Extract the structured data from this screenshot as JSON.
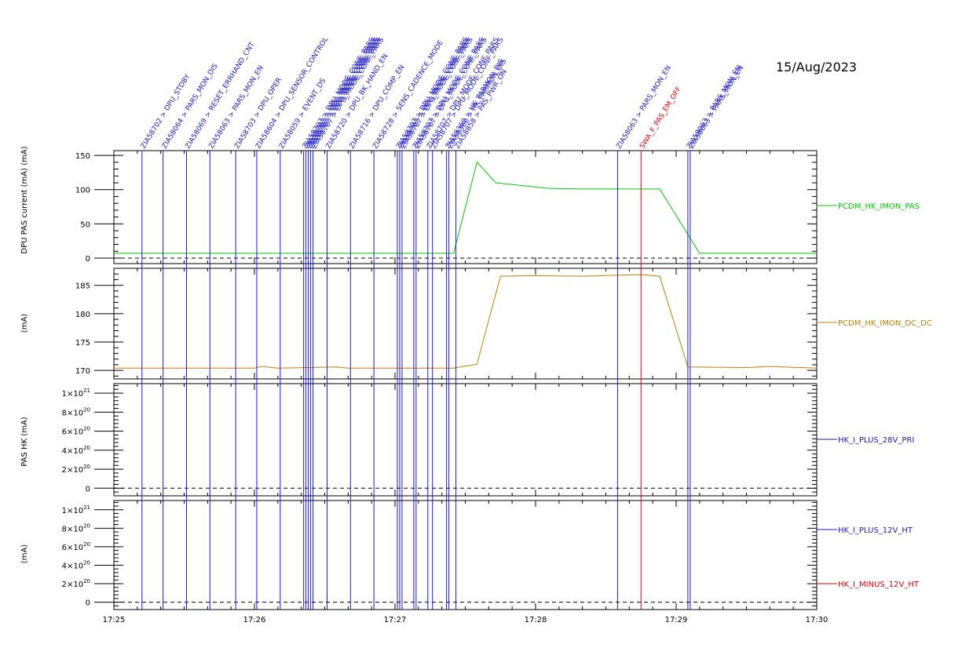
{
  "date": "15/Aug/2023",
  "x_ticks": [
    "17:25",
    "17:26",
    "17:27",
    "17:28",
    "17:29",
    "17:30"
  ],
  "chart_data": [
    {
      "type": "line",
      "panel": "pas-current",
      "ylabel": "DPU PAS current (mA)  (mA)",
      "ylim": [
        -8,
        157
      ],
      "yticks": [
        "0",
        "50",
        "100",
        "150"
      ],
      "ytick_values": [
        0,
        50,
        100,
        150
      ],
      "dashed_zero": true,
      "series": [
        {
          "name": "PCDM_HK_IMON_PAS",
          "color": "#00cc00",
          "x": [
            "17:25:00",
            "17:27:25",
            "17:27:35",
            "17:27:43",
            "17:28:05",
            "17:28:20",
            "17:28:45",
            "17:28:53",
            "17:29:10",
            "17:30:00"
          ],
          "values": [
            7,
            7,
            140,
            110,
            102,
            101,
            101,
            101,
            7,
            7
          ]
        }
      ]
    },
    {
      "type": "line",
      "panel": "dc-dc",
      "ylabel": "(mA)",
      "ylim": [
        168.5,
        188
      ],
      "yticks": [
        "170",
        "175",
        "180",
        "185"
      ],
      "ytick_values": [
        170,
        175,
        180,
        185
      ],
      "dashed_zero": false,
      "series": [
        {
          "name": "PCDM_HK_IMON_DC_DC",
          "color": "#c87d00",
          "x": [
            "17:25:00",
            "17:26:00",
            "17:26:03",
            "17:26:10",
            "17:26:35",
            "17:26:40",
            "17:27:25",
            "17:27:35",
            "17:27:45",
            "17:28:00",
            "17:28:20",
            "17:28:45",
            "17:28:53",
            "17:29:05",
            "17:29:30",
            "17:29:40",
            "17:30:00"
          ],
          "values": [
            170.4,
            170.4,
            170.7,
            170.4,
            170.6,
            170.4,
            170.4,
            171.1,
            186.6,
            186.7,
            186.6,
            186.9,
            186.6,
            170.6,
            170.5,
            170.7,
            170.4
          ]
        }
      ]
    },
    {
      "type": "line",
      "panel": "pas-hk",
      "ylabel": "PAS HK  (mA)",
      "ylim": [
        -8e+19,
        1.1e+21
      ],
      "yticks": [
        {
          "m": "0",
          "e": ""
        },
        {
          "m": "2×10",
          "e": "20"
        },
        {
          "m": "4×10",
          "e": "20"
        },
        {
          "m": "6×10",
          "e": "20"
        },
        {
          "m": "8×10",
          "e": "20"
        },
        {
          "m": "1×10",
          "e": "21"
        }
      ],
      "ytick_values": [
        0,
        2e+20,
        4e+20,
        6e+20,
        8e+20,
        1e+21
      ],
      "dashed_zero": true,
      "series": [
        {
          "name": "HK_I_PLUS_28V_PRI",
          "color": "#1a1acc",
          "x": [],
          "values": []
        }
      ]
    },
    {
      "type": "line",
      "panel": "ht",
      "ylabel": "(mA)",
      "ylim": [
        -8e+19,
        1.1e+21
      ],
      "yticks": [
        {
          "m": "0",
          "e": ""
        },
        {
          "m": "2×10",
          "e": "20"
        },
        {
          "m": "4×10",
          "e": "20"
        },
        {
          "m": "6×10",
          "e": "20"
        },
        {
          "m": "8×10",
          "e": "20"
        },
        {
          "m": "1×10",
          "e": "21"
        }
      ],
      "ytick_values": [
        0,
        2e+20,
        4e+20,
        6e+20,
        8e+20,
        1e+21
      ],
      "dashed_zero": true,
      "series": [
        {
          "name": "HK_I_PLUS_12V_HT",
          "color": "#1a1acc",
          "x": [],
          "values": []
        },
        {
          "name": "HK_I_MINUS_12V_HT",
          "color": "#dd0000",
          "x": [],
          "values": []
        }
      ]
    }
  ],
  "events": [
    {
      "t": "17:25:12",
      "label": "ZIA58702 > DPU_STDBY",
      "color": "#1a1acc"
    },
    {
      "t": "17:25:21",
      "label": "ZIA58064 > PARS_MON_DIS",
      "color": "#1a1acc"
    },
    {
      "t": "17:25:31",
      "label": "ZIA58069 > RESET_ERRHAND_CNT",
      "color": "#1a1acc"
    },
    {
      "t": "17:25:41",
      "label": "ZIA58063 > PARS_MON_EN",
      "color": "#1a1acc"
    },
    {
      "t": "17:25:52",
      "label": "ZIA58703 > DPU_OPER",
      "color": "#1a1acc"
    },
    {
      "t": "17:26:01",
      "label": "ZIA58604 > DPU_SENSOR_CONTROL",
      "color": "#1a1acc"
    },
    {
      "t": "17:26:11",
      "label": "ZIA58059 > EVENT_DS",
      "color": "#1a1acc"
    },
    {
      "t": "17:26:21",
      "label": "ZIA58707 > DPU_MODE_CONF_PARS",
      "color": "#1a1acc"
    },
    {
      "t": "17:26:22",
      "label": "ZIA58707 > DPU_MODE_CONF_PARS",
      "color": "#1a1acc"
    },
    {
      "t": "17:26:23",
      "label": "ZIA58707 > DPU_MODE_CONF_PARS",
      "color": "#1a1acc"
    },
    {
      "t": "17:26:24",
      "label": "ZIA58707 > DPU_MODE_CONF_PARS",
      "color": "#1a1acc"
    },
    {
      "t": "17:26:25",
      "label": "ZIA58707 > DPU_MODE_CONF_PARS",
      "color": "#1a1acc"
    },
    {
      "t": "17:26:31",
      "label": "ZIA58720 > DPU_BK_HAND_EN",
      "color": "#1a1acc"
    },
    {
      "t": "17:26:41",
      "label": "ZIA58716 > DPU_COMP_EN",
      "color": "#1a1acc"
    },
    {
      "t": "17:26:51",
      "label": "ZIA58728 > SENS_CADENCE_MODE",
      "color": "#1a1acc"
    },
    {
      "t": "17:27:01",
      "label": "ZIA58707 > DPU_MODE_CONF_PARS",
      "color": "#1a1acc"
    },
    {
      "t": "17:27:02",
      "label": "ZIA58707 > DPU_MODE_CONF_PARS",
      "color": "#1a1acc"
    },
    {
      "t": "17:27:03",
      "label": "ZIA58707 > DPU_MODE_CONF_PARS",
      "color": "#1a1acc"
    },
    {
      "t": "17:27:08",
      "label": "ZIA58707 > DPU_MODE_CONF_PARS",
      "color": "#1a1acc"
    },
    {
      "t": "17:27:09",
      "label": "ZIA58707 > DPU_MODE_CONF_PARS",
      "color": "#1a1acc"
    },
    {
      "t": "17:27:14",
      "label": "ZIA58707 > DPU_MODE_CONF_PARS",
      "color": "#1a1acc"
    },
    {
      "t": "17:27:16",
      "label": "ZIA58707 > DPU_MODE_CONF_PARS",
      "color": "#1a1acc"
    },
    {
      "t": "17:27:22",
      "label": "ZIA58360 > HK_PARMON_DIS",
      "color": "#1a1acc"
    },
    {
      "t": "17:27:23",
      "label": "ZIA58360 > HK_PARMON_DIS",
      "color": "#1a1acc"
    },
    {
      "t": "17:27:26",
      "label": "ZIA58858 > PAS_PWR_ON",
      "color": "#1a1acc"
    },
    {
      "t": "17:28:35",
      "label": "ZIA58063 > PARS_MON_EN",
      "color": "#1a1acc"
    },
    {
      "t": "17:28:45",
      "label": "SWA_F_PAS_EM_OFF",
      "color": "#dd0000"
    },
    {
      "t": "17:29:05",
      "label": "ZIA58063 > PARS_MON_EN",
      "color": "#1a1acc"
    },
    {
      "t": "17:29:06",
      "label": "ZIA58063 > PARS_MON_EN",
      "color": "#1a1acc"
    }
  ]
}
